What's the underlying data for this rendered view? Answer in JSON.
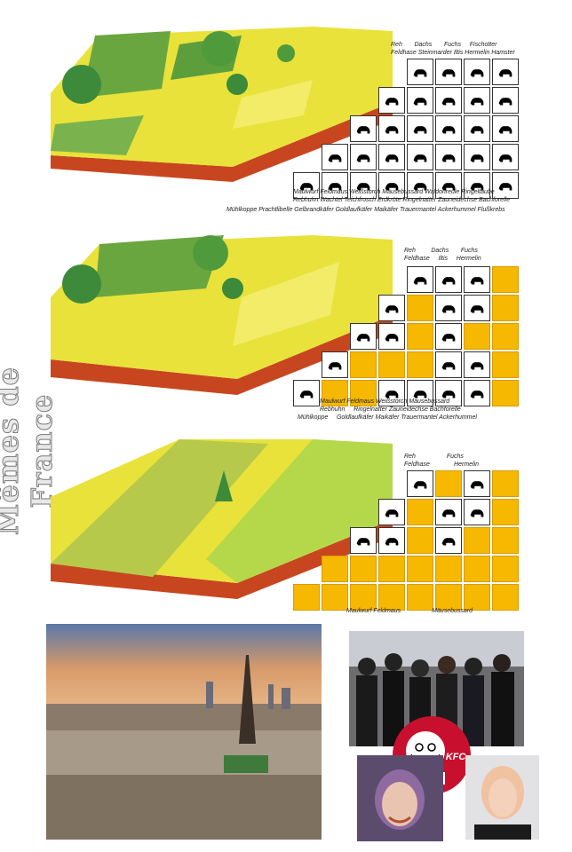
{
  "watermark": {
    "text": "Mêmes de France"
  },
  "panel1": {
    "top_labels": [
      "Reh",
      "Dachs",
      "Fuchs",
      "Fischotter"
    ],
    "top_labels2": [
      "Feldhase",
      "Steinmarder",
      "Iltis",
      "Hermelin",
      "Hamster"
    ],
    "bottom_labels": [
      "Maulwurf",
      "Feldmaus",
      "Weißstorch",
      "Mäusebussard",
      "Waldohreule",
      "Ringeltaube"
    ],
    "bottom_labels2": [
      "Rebhuhn",
      "Wachtel",
      "Teichfrosch",
      "Erdkröte",
      "Ringelnatter",
      "Zauneidechse",
      "Bachforelle"
    ],
    "bottom_labels3": [
      "Mühlkoppe",
      "Prachtlibelle",
      "Gelbrandkäfer",
      "Goldlaufkäfer",
      "Maikäfer",
      "Trauermantel",
      "Ackerhummel",
      "Flußkrebs"
    ]
  },
  "panel2": {
    "top_labels": [
      "Reh",
      "Dachs",
      "Fuchs"
    ],
    "top_labels2": [
      "Feldhase",
      "Iltis",
      "Hermelin"
    ],
    "bottom_labels": [
      "Maulwurf",
      "Feldmaus",
      "Weißstorch",
      "Mäusebussard"
    ],
    "bottom_labels2": [
      "Rebhuhn",
      "Ringelnatter",
      "Zauneidechse",
      "Bachforelle"
    ],
    "bottom_labels3": [
      "Mühlkoppe",
      "Goldlaufkäfer",
      "Maikäfer",
      "Trauermantel",
      "Ackerhummel"
    ]
  },
  "panel3": {
    "top_labels": [
      "Reh",
      "Fuchs"
    ],
    "top_labels2": [
      "Feldhase",
      "Hermelin"
    ],
    "bottom_labels": [
      "Maulwurf",
      "Feldmaus",
      "Mäusebussard"
    ]
  },
  "kfc": {
    "text": "KFC"
  },
  "colors": {
    "field_yellow": "#e9e23a",
    "soil": "#c8461f",
    "grid_orange": "#f6b800",
    "sky": "#d89a6a"
  }
}
